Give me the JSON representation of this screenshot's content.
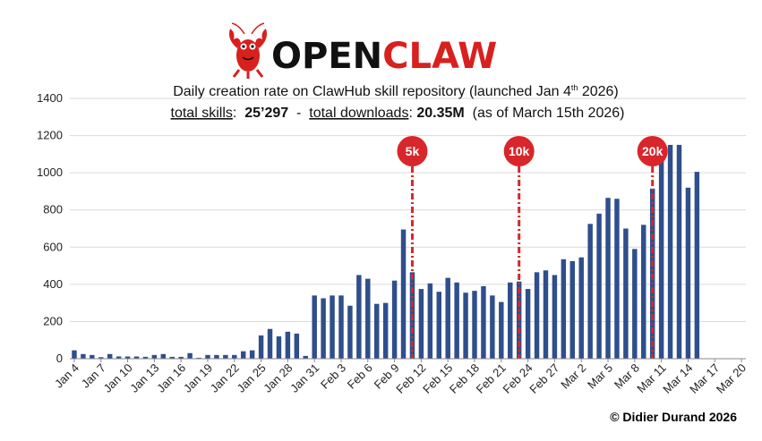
{
  "logo": {
    "part1": "OPEN",
    "part2": "CLAW",
    "color_dark": "#111111",
    "color_red": "#d8201f",
    "icon": "lobster-icon"
  },
  "title": {
    "line1_pre": "Daily creation rate on ClawHub skill repository (launched Jan 4",
    "line1_sup": "th",
    "line1_post": " 2026)",
    "stat1_label": "total skills",
    "stat1_sep": ":  ",
    "stat1_value": "25’297",
    "dash": "  -  ",
    "stat2_label": "total downloads",
    "stat2_sep": ": ",
    "stat2_value": "20.35M",
    "asof": "  (as of March 15th 2026)"
  },
  "credit": "© Didier Durand 2026",
  "colors": {
    "bar": "#2f4e8c",
    "marker": "#d8262b",
    "grid": "#d9d9d9",
    "axis": "#888888"
  },
  "chart_data": {
    "type": "bar",
    "title": "Daily creation rate on ClawHub skill repository (launched Jan 4th 2026)",
    "xlabel": "",
    "ylabel": "",
    "ylim": [
      0,
      1400
    ],
    "yticks": [
      "0",
      "200",
      "400",
      "600",
      "800",
      "1000",
      "1200",
      "1400"
    ],
    "grid": true,
    "xtick_labels": [
      "Jan 4",
      "Jan 7",
      "Jan 10",
      "Jan 13",
      "Jan 16",
      "Jan 19",
      "Jan 22",
      "Jan 25",
      "Jan 28",
      "Jan 31",
      "Feb 3",
      "Feb 6",
      "Feb 9",
      "Feb 12",
      "Feb 15",
      "Feb 18",
      "Feb 21",
      "Feb 24",
      "Feb 27",
      "Mar 2",
      "Mar 5",
      "Mar 8",
      "Mar 11",
      "Mar 14",
      "Mar 17",
      "Mar 20"
    ],
    "num_days": 76,
    "values": [
      45,
      25,
      20,
      8,
      25,
      12,
      12,
      12,
      10,
      20,
      25,
      10,
      10,
      30,
      5,
      20,
      20,
      20,
      20,
      40,
      45,
      125,
      160,
      120,
      145,
      135,
      15,
      340,
      325,
      340,
      340,
      285,
      450,
      430,
      295,
      300,
      420,
      695,
      465,
      375,
      405,
      360,
      435,
      410,
      355,
      365,
      390,
      340,
      305,
      410,
      415,
      375,
      465,
      475,
      450,
      535,
      525,
      545,
      725,
      780,
      865,
      860,
      700,
      590,
      720,
      915,
      1100,
      1150,
      1150,
      920,
      1005
    ],
    "markers": [
      {
        "label": "5k",
        "day_index": 38
      },
      {
        "label": "10k",
        "day_index": 50
      },
      {
        "label": "20k",
        "day_index": 65
      }
    ]
  }
}
